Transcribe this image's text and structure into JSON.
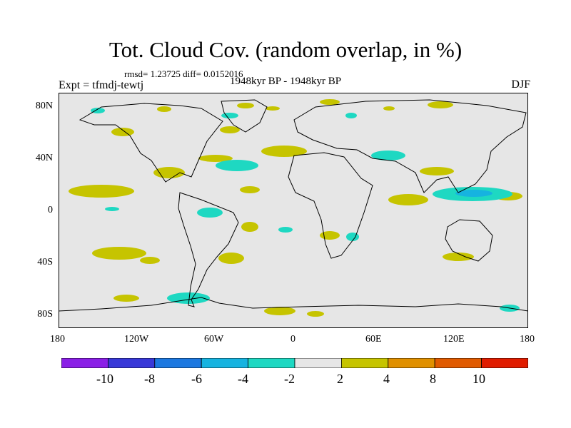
{
  "title": "Tot. Cloud Cov. (random overlap, in %)",
  "stats": "rmsd= 1.23725  diff= 0.0152016",
  "left_label": "Expt = tfmdj-tewtj",
  "subtitle": "1948kyr BP - 1948kyr BP",
  "season": "DJF",
  "lat_labels": [
    "80N",
    "40N",
    "0",
    "40S",
    "80S"
  ],
  "lon_labels": [
    "180",
    "120W",
    "60W",
    "0",
    "60E",
    "120E",
    "180"
  ],
  "colorbar": {
    "colors": [
      "#8a1fe6",
      "#3838d8",
      "#1c78e0",
      "#16b3e0",
      "#1ed8c2",
      "#e6e6e6",
      "#c6c400",
      "#e09000",
      "#e05a00",
      "#e01c00"
    ],
    "labels": [
      "-10",
      "-8",
      "-6",
      "-4",
      "-2",
      "2",
      "4",
      "8",
      "10"
    ]
  },
  "colors": {
    "background": "#e6e6e6",
    "positive": "#c6c400",
    "negative": "#1ed8c2",
    "strong_negative": "#16b3e0",
    "coast": "#000000"
  }
}
